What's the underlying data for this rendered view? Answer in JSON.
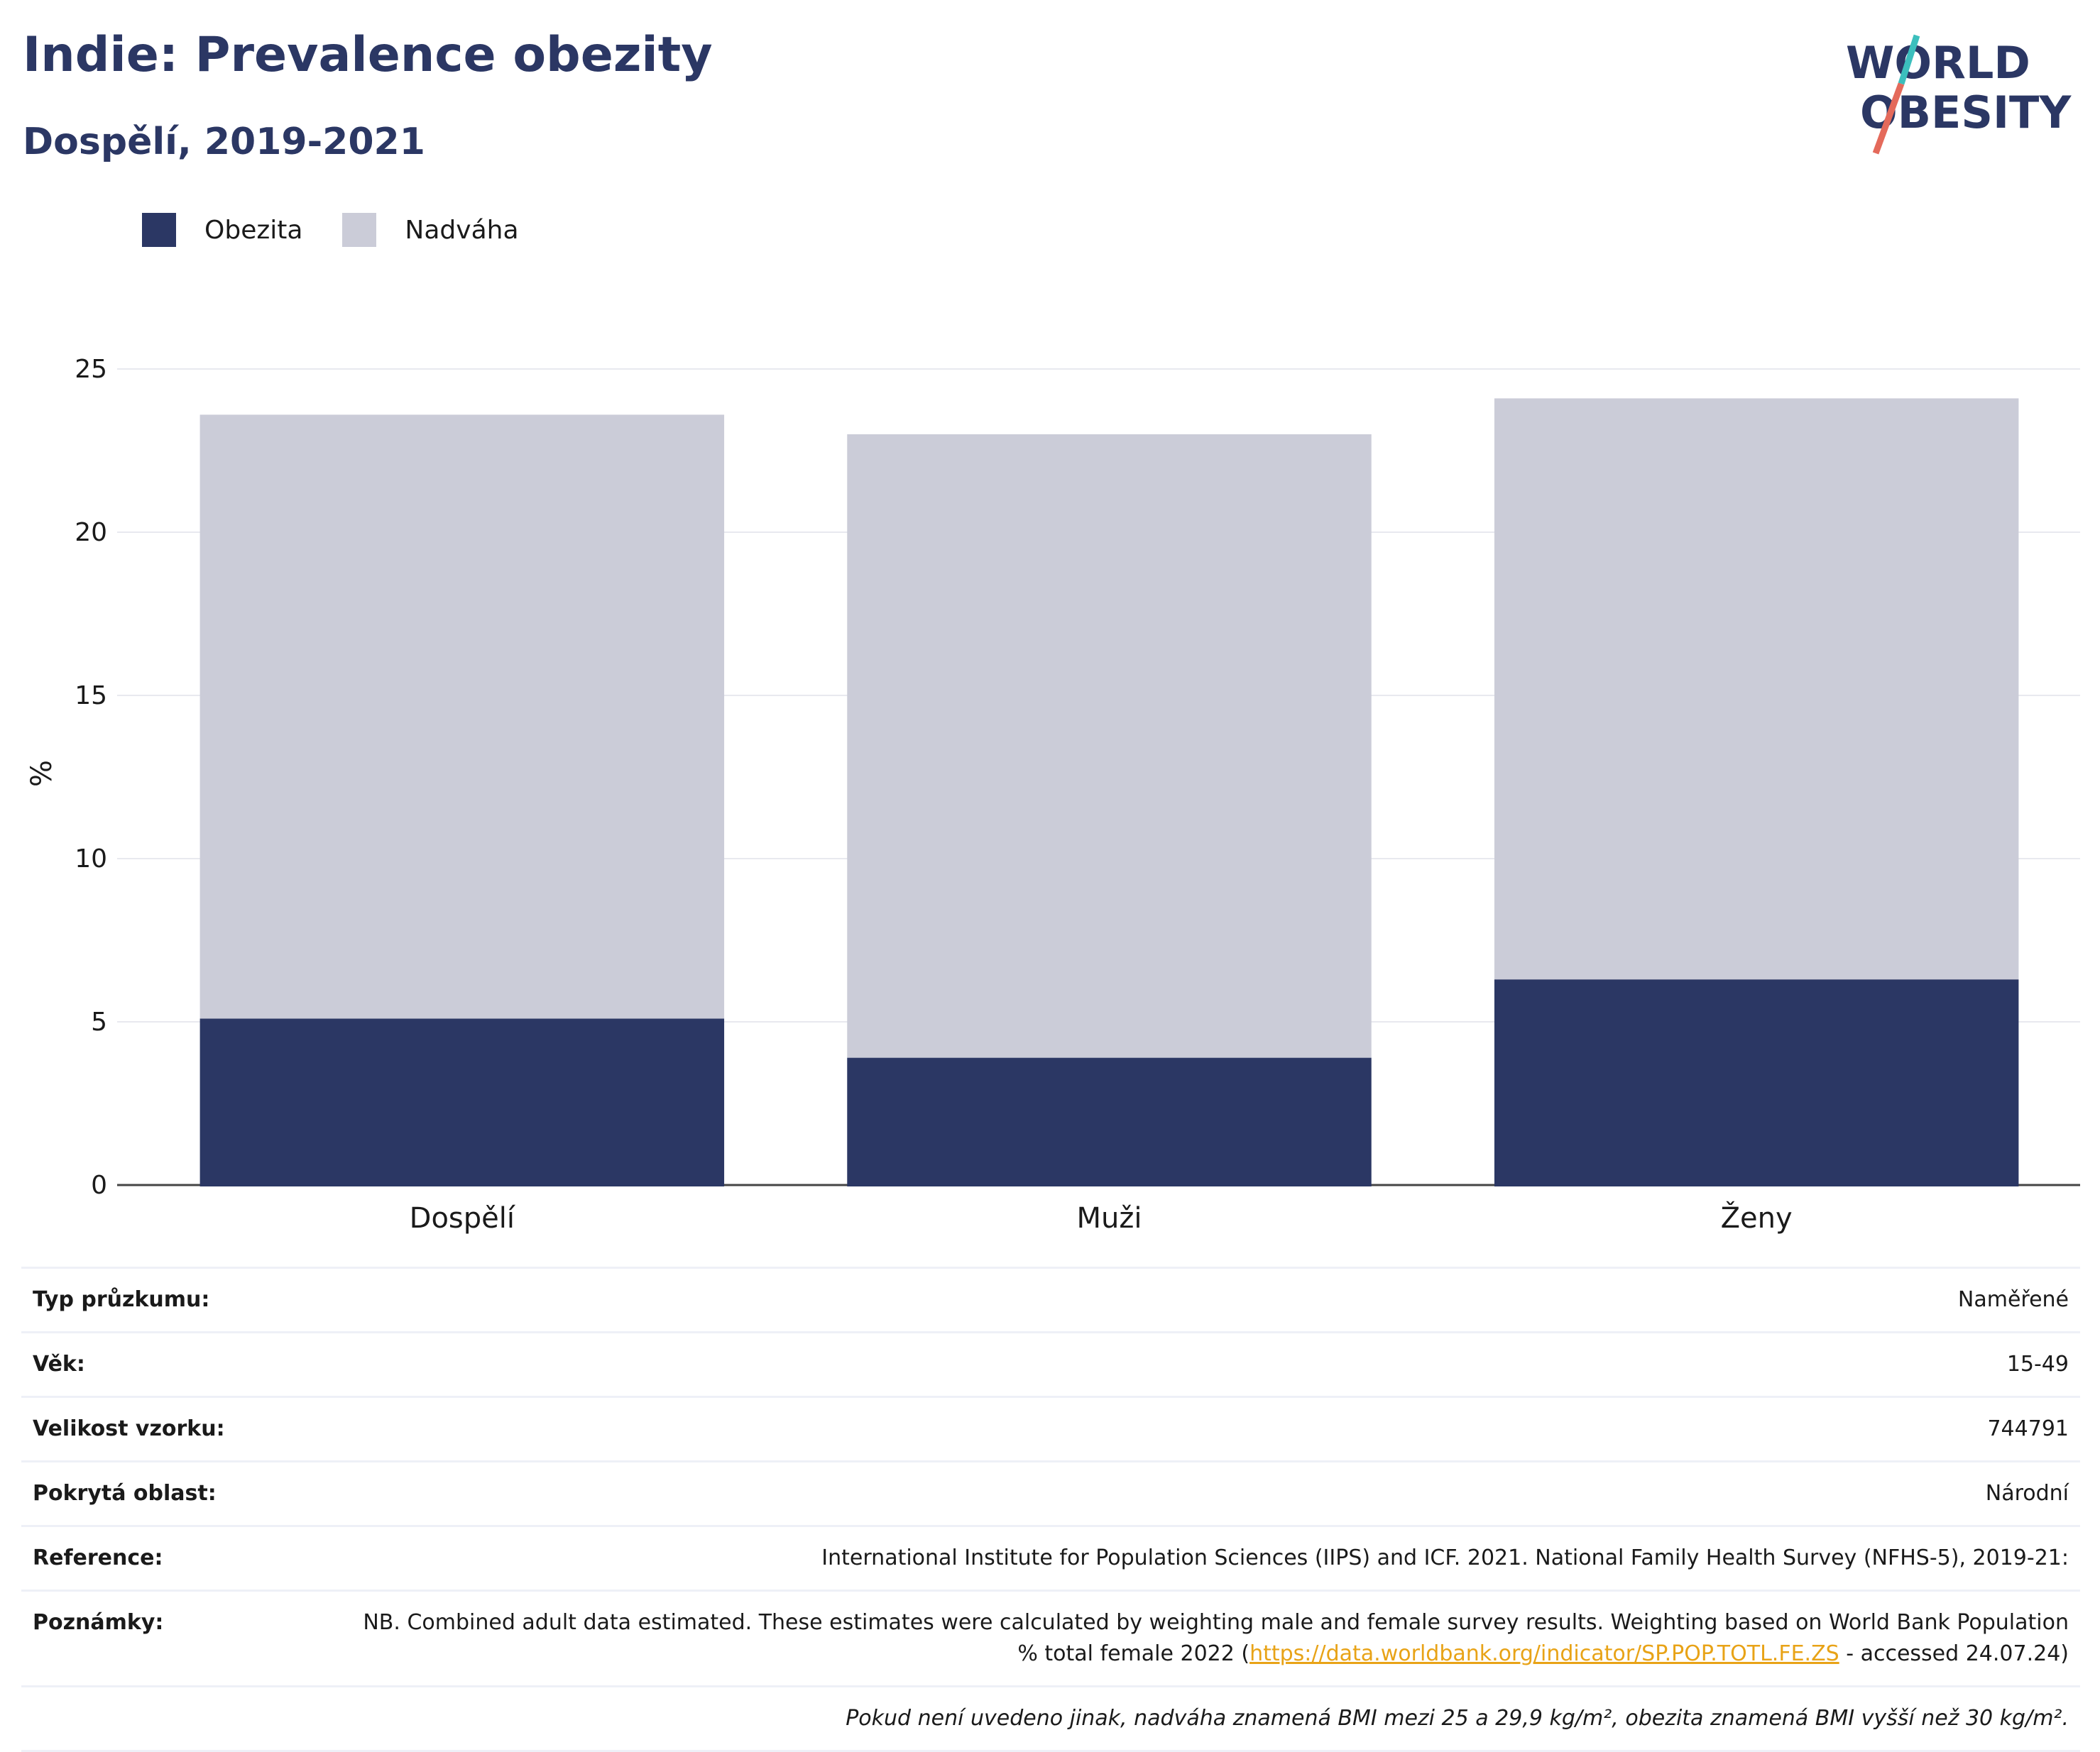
{
  "header": {
    "title": "Indie: Prevalence obezity",
    "subtitle": "Dospělí, 2019-2021"
  },
  "logo": {
    "line1": "WORLD",
    "line2": "OBESITY",
    "accent_teal": "#3cbfbd",
    "accent_red": "#e46a5b",
    "text_color": "#2b3764"
  },
  "legend": [
    {
      "label": "Obezita",
      "color": "#2b3764"
    },
    {
      "label": "Nadváha",
      "color": "#cbccd8"
    }
  ],
  "chart_data": {
    "type": "bar",
    "stacked": true,
    "categories": [
      "Dospělí",
      "Muži",
      "Ženy"
    ],
    "series": [
      {
        "name": "Obezita",
        "values": [
          5.1,
          3.9,
          6.3
        ],
        "color": "#2b3764"
      },
      {
        "name": "Nadváha",
        "values": [
          18.5,
          19.1,
          17.8
        ],
        "color": "#cbccd8"
      }
    ],
    "ylabel": "%",
    "ylim": [
      0,
      25
    ],
    "yticks": [
      0,
      5,
      10,
      15,
      20,
      25
    ],
    "grid": true
  },
  "info": {
    "survey_type": {
      "label": "Typ průzkumu:",
      "value": "Naměřené"
    },
    "age": {
      "label": "Věk:",
      "value": "15-49"
    },
    "sample_size": {
      "label": "Velikost vzorku:",
      "value": "744791"
    },
    "coverage": {
      "label": "Pokrytá oblast:",
      "value": "Národní"
    },
    "reference": {
      "label": "Reference:",
      "value": "International Institute for Population Sciences (IIPS) and ICF. 2021. National Family Health Survey (NFHS-5), 2019-21:"
    },
    "notes": {
      "label": "Poznámky:",
      "text_before": "NB. Combined adult data estimated. These estimates were calculated by weighting male and female survey results. Weighting based on World Bank Population % total female 2022 (",
      "link": "https://data.worldbank.org/indicator/SP.POP.TOTL.FE.ZS",
      "text_after": " - accessed 24.07.24)"
    },
    "footnote": "Pokud není uvedeno jinak, nadváha znamená BMI mezi 25 a 29,9 kg/m², obezita znamená BMI vyšší než 30 kg/m²."
  }
}
